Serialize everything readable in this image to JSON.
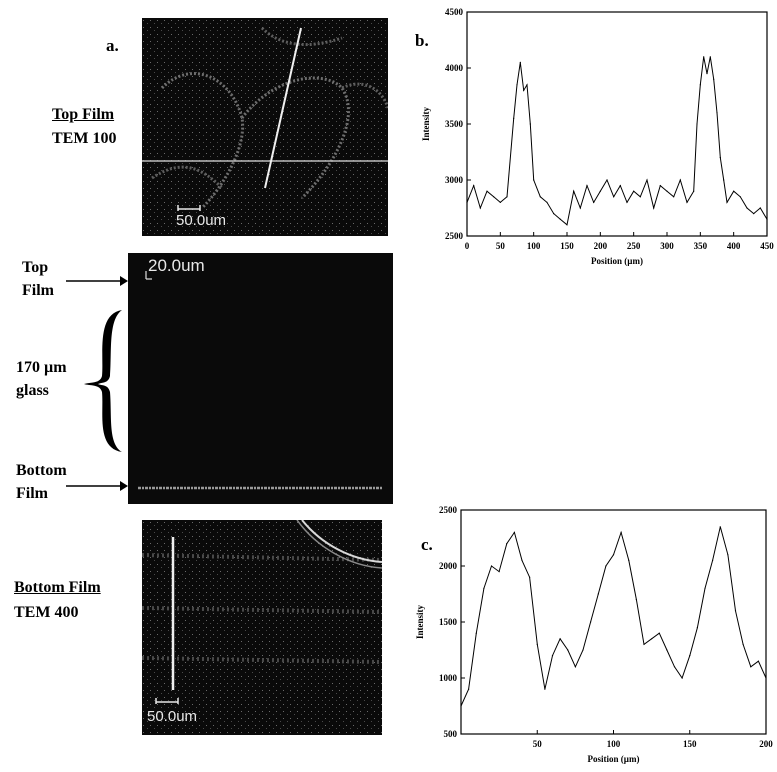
{
  "panel_labels": {
    "a": "a.",
    "b": "b.",
    "c": "c."
  },
  "left_labels": {
    "top_film_title": "Top Film",
    "top_film_sub": "TEM 100",
    "top_arrow_line1": "Top",
    "top_arrow_line2": "Film",
    "glass_line1": "170 µm",
    "glass_line2": "glass",
    "bottom_arrow_line1": "Bottom",
    "bottom_arrow_line2": "Film",
    "bottom_film_title": "Bottom Film",
    "bottom_film_sub": "TEM 400"
  },
  "micrographs": {
    "top_scale": "50.0um",
    "cross_section_scale": "20.0um",
    "bottom_scale": "50.0um"
  },
  "chart_data": [
    {
      "type": "line",
      "panel": "b.",
      "xlabel": "Position (µm)",
      "ylabel": "Intensity",
      "xlim": [
        0,
        450
      ],
      "ylim": [
        2500,
        4500
      ],
      "xticks": [
        0,
        50,
        100,
        150,
        200,
        250,
        300,
        350,
        400,
        450
      ],
      "yticks": [
        2500,
        3000,
        3500,
        4000,
        4500
      ],
      "x": [
        0,
        10,
        20,
        30,
        40,
        50,
        60,
        70,
        75,
        80,
        85,
        90,
        95,
        100,
        110,
        120,
        130,
        140,
        150,
        160,
        170,
        180,
        190,
        200,
        210,
        220,
        230,
        240,
        250,
        260,
        270,
        280,
        290,
        300,
        310,
        320,
        330,
        340,
        345,
        350,
        355,
        360,
        365,
        370,
        375,
        380,
        385,
        390,
        400,
        410,
        420,
        430,
        440,
        450
      ],
      "y": [
        2800,
        2950,
        2750,
        2900,
        2850,
        2800,
        2850,
        3550,
        3850,
        4050,
        3800,
        3850,
        3500,
        3000,
        2850,
        2800,
        2700,
        2650,
        2600,
        2900,
        2750,
        2950,
        2800,
        2900,
        3000,
        2850,
        2950,
        2800,
        2900,
        2850,
        3000,
        2750,
        2950,
        2900,
        2850,
        3000,
        2800,
        2900,
        3500,
        3850,
        4100,
        3950,
        4100,
        3900,
        3600,
        3200,
        3000,
        2800,
        2900,
        2850,
        2750,
        2700,
        2750,
        2650
      ]
    },
    {
      "type": "line",
      "panel": "c.",
      "xlabel": "Position (µm)",
      "ylabel": "Intensity",
      "xlim": [
        0,
        200
      ],
      "ylim": [
        500,
        2500
      ],
      "xticks": [
        50,
        100,
        150,
        200
      ],
      "yticks": [
        500,
        1000,
        1500,
        2000,
        2500
      ],
      "x": [
        0,
        5,
        10,
        15,
        20,
        25,
        30,
        35,
        40,
        45,
        50,
        55,
        60,
        65,
        70,
        75,
        80,
        85,
        90,
        95,
        100,
        105,
        110,
        115,
        120,
        125,
        130,
        135,
        140,
        145,
        150,
        155,
        160,
        165,
        170,
        175,
        180,
        185,
        190,
        195,
        200
      ],
      "y": [
        750,
        900,
        1400,
        1800,
        2000,
        1950,
        2200,
        2300,
        2050,
        1900,
        1300,
        900,
        1200,
        1350,
        1250,
        1100,
        1250,
        1500,
        1750,
        2000,
        2100,
        2300,
        2050,
        1700,
        1300,
        1350,
        1400,
        1250,
        1100,
        1000,
        1200,
        1450,
        1800,
        2050,
        2350,
        2100,
        1600,
        1300,
        1100,
        1150,
        1000
      ]
    }
  ]
}
